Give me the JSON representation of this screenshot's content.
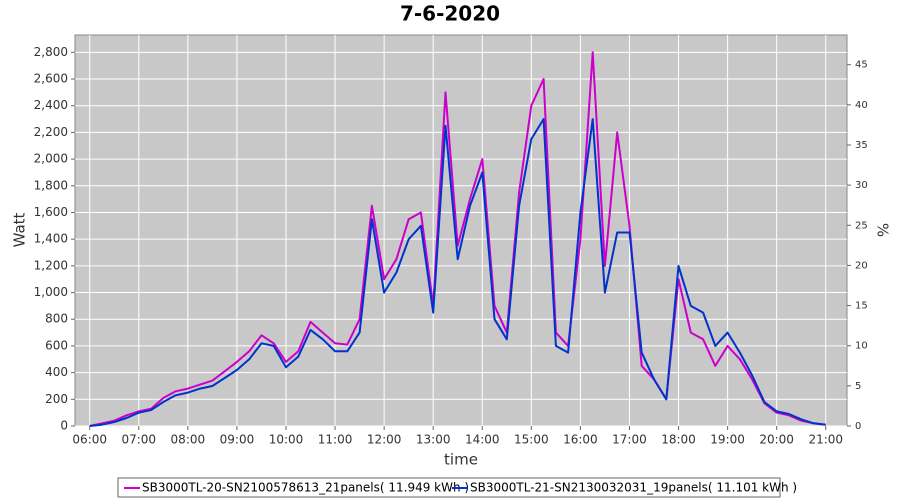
{
  "chart_data": {
    "type": "line",
    "title": "7-6-2020",
    "xlabel": "time",
    "ylabel": "Watt",
    "y2label": "%",
    "x": [
      "06:00",
      "06:15",
      "06:30",
      "06:45",
      "07:00",
      "07:15",
      "07:30",
      "07:45",
      "08:00",
      "08:15",
      "08:30",
      "08:45",
      "09:00",
      "09:15",
      "09:30",
      "09:45",
      "10:00",
      "10:15",
      "10:30",
      "10:45",
      "11:00",
      "11:15",
      "11:30",
      "11:45",
      "12:00",
      "12:15",
      "12:30",
      "12:45",
      "13:00",
      "13:15",
      "13:30",
      "13:45",
      "14:00",
      "14:15",
      "14:30",
      "14:45",
      "15:00",
      "15:15",
      "15:30",
      "15:45",
      "16:00",
      "16:15",
      "16:30",
      "16:45",
      "17:00",
      "17:15",
      "17:30",
      "17:45",
      "18:00",
      "18:15",
      "18:30",
      "18:45",
      "19:00",
      "19:15",
      "19:30",
      "19:45",
      "20:00",
      "20:15",
      "20:30",
      "20:45",
      "21:00"
    ],
    "series": [
      {
        "name": "SB3000TL-20-SN2100578613_21panels( 11.949 kWh )",
        "color": "#cc00cc",
        "values": [
          0,
          20,
          40,
          80,
          110,
          130,
          210,
          260,
          280,
          310,
          340,
          410,
          480,
          560,
          680,
          620,
          480,
          560,
          780,
          700,
          620,
          610,
          800,
          1650,
          1100,
          1250,
          1550,
          1600,
          900,
          2500,
          1350,
          1700,
          2000,
          900,
          700,
          1750,
          2400,
          2600,
          700,
          600,
          1400,
          2800,
          1200,
          2200,
          1500,
          450,
          350,
          200,
          1100,
          700,
          650,
          450,
          600,
          500,
          350,
          170,
          100,
          80,
          40,
          20,
          10
        ]
      },
      {
        "name": "SB3000TL-21-SN2130032031_19panels( 11.101 kWh )",
        "color": "#0033cc",
        "values": [
          0,
          10,
          30,
          60,
          100,
          120,
          180,
          230,
          250,
          280,
          300,
          360,
          420,
          500,
          620,
          600,
          440,
          520,
          720,
          650,
          560,
          560,
          700,
          1550,
          1000,
          1150,
          1400,
          1500,
          850,
          2250,
          1250,
          1650,
          1900,
          800,
          650,
          1650,
          2150,
          2300,
          600,
          550,
          1600,
          2300,
          1000,
          1450,
          1450,
          550,
          350,
          200,
          1200,
          900,
          850,
          600,
          700,
          550,
          380,
          180,
          110,
          90,
          50,
          20,
          10
        ]
      }
    ],
    "xlim": [
      "05:42",
      "21:26"
    ],
    "xticks": [
      "06:00",
      "07:00",
      "08:00",
      "09:00",
      "10:00",
      "11:00",
      "12:00",
      "13:00",
      "14:00",
      "15:00",
      "16:00",
      "17:00",
      "18:00",
      "19:00",
      "20:00",
      "21:00"
    ],
    "ylim": [
      0,
      2930
    ],
    "yticks": [
      0,
      200,
      400,
      600,
      800,
      {
        "value": 1000,
        "label": "1,000"
      },
      {
        "value": 1200,
        "label": "1,200"
      },
      {
        "value": 1400,
        "label": "1,400"
      },
      {
        "value": 1600,
        "label": "1,600"
      },
      {
        "value": 1800,
        "label": "1,800"
      },
      {
        "value": 2000,
        "label": "2,000"
      },
      {
        "value": 2200,
        "label": "2,200"
      },
      {
        "value": 2400,
        "label": "2,400"
      },
      {
        "value": 2600,
        "label": "2,600"
      },
      {
        "value": 2800,
        "label": "2,800"
      }
    ],
    "y2lim": [
      0,
      48.7
    ],
    "y2ticks": [
      0,
      5,
      10,
      15,
      20,
      25,
      30,
      35,
      40,
      45
    ],
    "grid": true
  }
}
